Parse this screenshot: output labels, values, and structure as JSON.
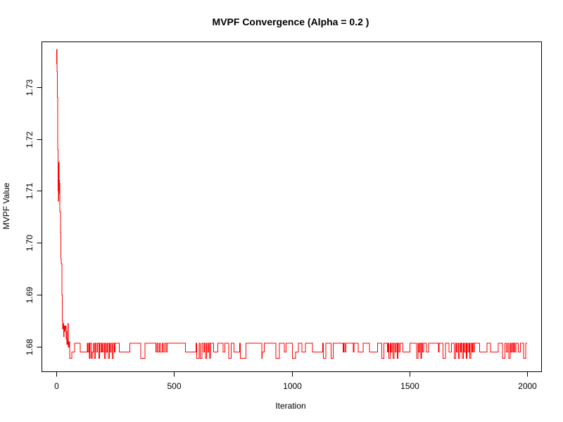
{
  "chart_data": {
    "type": "line",
    "title": "MVPF Convergence (Alpha = 0.2 )",
    "xlabel": "Iteration",
    "ylabel": "MVPF Value",
    "xlim": [
      -60,
      2060
    ],
    "ylim": [
      1.6753,
      1.7386
    ],
    "x_ticks": [
      0,
      500,
      1000,
      1500,
      2000
    ],
    "x_tick_labels": [
      "0",
      "500",
      "1000",
      "1500",
      "2000"
    ],
    "y_ticks": [
      1.68,
      1.69,
      1.7,
      1.71,
      1.72,
      1.73
    ],
    "y_tick_labels": [
      "1.68",
      "1.69",
      "1.70",
      "1.71",
      "1.72",
      "1.73"
    ],
    "grid": false,
    "legend": "none",
    "series": [
      {
        "color": "#ff0000",
        "steps": [
          [
            0,
            1.7345
          ],
          [
            1,
            1.7372
          ],
          [
            3,
            1.733
          ],
          [
            5,
            1.728
          ],
          [
            6,
            1.718
          ],
          [
            7,
            1.715
          ],
          [
            8,
            1.71
          ],
          [
            9,
            1.708
          ],
          [
            10,
            1.711
          ],
          [
            11,
            1.7155
          ],
          [
            12,
            1.712
          ],
          [
            13,
            1.7095
          ],
          [
            14,
            1.7115
          ],
          [
            15,
            1.706
          ],
          [
            17,
            1.702
          ],
          [
            19,
            1.697
          ],
          [
            21,
            1.696
          ],
          [
            23,
            1.69
          ],
          [
            25,
            1.685
          ],
          [
            27,
            1.6835
          ],
          [
            29,
            1.6845
          ],
          [
            31,
            1.682
          ],
          [
            33,
            1.684
          ],
          [
            35,
            1.683
          ],
          [
            37,
            1.6835
          ],
          [
            39,
            1.684
          ],
          [
            41,
            1.6815
          ],
          [
            43,
            1.683
          ],
          [
            45,
            1.6805
          ],
          [
            47,
            1.6815
          ],
          [
            49,
            1.6845
          ],
          [
            51,
            1.68
          ],
          [
            53,
            1.681
          ],
          [
            57,
            1.6778
          ],
          [
            62,
            1.6778
          ],
          [
            66,
            1.679
          ],
          [
            72,
            1.679
          ],
          [
            78,
            1.6807
          ],
          [
            98,
            1.6807
          ],
          [
            102,
            1.679
          ],
          [
            128,
            1.679
          ],
          [
            131,
            1.6807
          ],
          [
            133,
            1.679
          ],
          [
            138,
            1.6807
          ],
          [
            140,
            1.6778
          ],
          [
            143,
            1.6807
          ],
          [
            150,
            1.6778
          ],
          [
            153,
            1.679
          ],
          [
            158,
            1.6807
          ],
          [
            162,
            1.6778
          ],
          [
            165,
            1.6807
          ],
          [
            170,
            1.679
          ],
          [
            175,
            1.6807
          ],
          [
            180,
            1.6778
          ],
          [
            184,
            1.6807
          ],
          [
            188,
            1.679
          ],
          [
            192,
            1.6807
          ],
          [
            196,
            1.679
          ],
          [
            200,
            1.6807
          ],
          [
            205,
            1.6778
          ],
          [
            209,
            1.6807
          ],
          [
            212,
            1.679
          ],
          [
            217,
            1.6807
          ],
          [
            221,
            1.6778
          ],
          [
            225,
            1.6807
          ],
          [
            229,
            1.679
          ],
          [
            233,
            1.6807
          ],
          [
            238,
            1.6778
          ],
          [
            242,
            1.6807
          ],
          [
            246,
            1.679
          ],
          [
            250,
            1.6807
          ],
          [
            268,
            1.679
          ],
          [
            308,
            1.679
          ],
          [
            312,
            1.6807
          ],
          [
            355,
            1.6807
          ],
          [
            358,
            1.6778
          ],
          [
            373,
            1.6778
          ],
          [
            376,
            1.6807
          ],
          [
            420,
            1.6807
          ],
          [
            423,
            1.679
          ],
          [
            428,
            1.6807
          ],
          [
            432,
            1.679
          ],
          [
            438,
            1.6807
          ],
          [
            443,
            1.679
          ],
          [
            450,
            1.6807
          ],
          [
            455,
            1.679
          ],
          [
            460,
            1.6807
          ],
          [
            466,
            1.679
          ],
          [
            470,
            1.6807
          ],
          [
            545,
            1.6807
          ],
          [
            548,
            1.679
          ],
          [
            590,
            1.679
          ],
          [
            594,
            1.6807
          ],
          [
            596,
            1.6778
          ],
          [
            604,
            1.6778
          ],
          [
            607,
            1.6807
          ],
          [
            612,
            1.6778
          ],
          [
            618,
            1.6807
          ],
          [
            625,
            1.679
          ],
          [
            629,
            1.6807
          ],
          [
            633,
            1.6778
          ],
          [
            638,
            1.6807
          ],
          [
            642,
            1.679
          ],
          [
            647,
            1.6807
          ],
          [
            651,
            1.6778
          ],
          [
            655,
            1.6807
          ],
          [
            665,
            1.6807
          ],
          [
            668,
            1.679
          ],
          [
            683,
            1.679
          ],
          [
            686,
            1.6807
          ],
          [
            705,
            1.6807
          ],
          [
            708,
            1.679
          ],
          [
            713,
            1.679
          ],
          [
            716,
            1.6807
          ],
          [
            730,
            1.6807
          ],
          [
            733,
            1.6778
          ],
          [
            740,
            1.6778
          ],
          [
            743,
            1.6807
          ],
          [
            752,
            1.6807
          ],
          [
            755,
            1.679
          ],
          [
            776,
            1.679
          ],
          [
            779,
            1.6807
          ],
          [
            782,
            1.6778
          ],
          [
            802,
            1.6778
          ],
          [
            806,
            1.6807
          ],
          [
            870,
            1.6807
          ],
          [
            873,
            1.6778
          ],
          [
            875,
            1.679
          ],
          [
            880,
            1.679
          ],
          [
            883,
            1.6807
          ],
          [
            930,
            1.6807
          ],
          [
            933,
            1.6778
          ],
          [
            945,
            1.6778
          ],
          [
            948,
            1.6807
          ],
          [
            965,
            1.6807
          ],
          [
            968,
            1.679
          ],
          [
            973,
            1.679
          ],
          [
            976,
            1.6807
          ],
          [
            1000,
            1.6807
          ],
          [
            1003,
            1.6778
          ],
          [
            1013,
            1.6778
          ],
          [
            1016,
            1.679
          ],
          [
            1026,
            1.679
          ],
          [
            1029,
            1.6807
          ],
          [
            1040,
            1.6807
          ],
          [
            1043,
            1.679
          ],
          [
            1056,
            1.679
          ],
          [
            1059,
            1.6807
          ],
          [
            1085,
            1.6807
          ],
          [
            1088,
            1.679
          ],
          [
            1128,
            1.679
          ],
          [
            1131,
            1.6807
          ],
          [
            1135,
            1.6778
          ],
          [
            1142,
            1.6778
          ],
          [
            1145,
            1.6807
          ],
          [
            1165,
            1.6807
          ],
          [
            1168,
            1.6778
          ],
          [
            1173,
            1.6778
          ],
          [
            1176,
            1.6807
          ],
          [
            1215,
            1.6807
          ],
          [
            1218,
            1.679
          ],
          [
            1222,
            1.6807
          ],
          [
            1226,
            1.679
          ],
          [
            1230,
            1.6807
          ],
          [
            1258,
            1.6807
          ],
          [
            1261,
            1.679
          ],
          [
            1265,
            1.6807
          ],
          [
            1280,
            1.6807
          ],
          [
            1283,
            1.679
          ],
          [
            1300,
            1.679
          ],
          [
            1303,
            1.6807
          ],
          [
            1328,
            1.6807
          ],
          [
            1331,
            1.679
          ],
          [
            1362,
            1.679
          ],
          [
            1365,
            1.6807
          ],
          [
            1379,
            1.6807
          ],
          [
            1382,
            1.6778
          ],
          [
            1389,
            1.6778
          ],
          [
            1392,
            1.6807
          ],
          [
            1403,
            1.6807
          ],
          [
            1406,
            1.679
          ],
          [
            1409,
            1.6807
          ],
          [
            1413,
            1.6778
          ],
          [
            1418,
            1.6807
          ],
          [
            1422,
            1.679
          ],
          [
            1426,
            1.6807
          ],
          [
            1430,
            1.6778
          ],
          [
            1435,
            1.6807
          ],
          [
            1440,
            1.679
          ],
          [
            1444,
            1.6807
          ],
          [
            1448,
            1.6778
          ],
          [
            1452,
            1.6807
          ],
          [
            1456,
            1.679
          ],
          [
            1460,
            1.6807
          ],
          [
            1470,
            1.6807
          ],
          [
            1473,
            1.679
          ],
          [
            1500,
            1.679
          ],
          [
            1503,
            1.6807
          ],
          [
            1528,
            1.6807
          ],
          [
            1531,
            1.6778
          ],
          [
            1536,
            1.6807
          ],
          [
            1540,
            1.679
          ],
          [
            1544,
            1.6807
          ],
          [
            1548,
            1.6778
          ],
          [
            1552,
            1.6807
          ],
          [
            1556,
            1.679
          ],
          [
            1560,
            1.6807
          ],
          [
            1570,
            1.6807
          ],
          [
            1573,
            1.679
          ],
          [
            1578,
            1.679
          ],
          [
            1581,
            1.6807
          ],
          [
            1620,
            1.6807
          ],
          [
            1623,
            1.679
          ],
          [
            1627,
            1.6807
          ],
          [
            1640,
            1.6807
          ],
          [
            1643,
            1.6778
          ],
          [
            1650,
            1.6778
          ],
          [
            1653,
            1.6807
          ],
          [
            1665,
            1.6807
          ],
          [
            1668,
            1.679
          ],
          [
            1676,
            1.679
          ],
          [
            1679,
            1.6807
          ],
          [
            1688,
            1.6807
          ],
          [
            1691,
            1.6778
          ],
          [
            1696,
            1.6807
          ],
          [
            1700,
            1.679
          ],
          [
            1704,
            1.6807
          ],
          [
            1708,
            1.6778
          ],
          [
            1713,
            1.6807
          ],
          [
            1717,
            1.679
          ],
          [
            1721,
            1.6807
          ],
          [
            1725,
            1.6778
          ],
          [
            1729,
            1.6807
          ],
          [
            1733,
            1.679
          ],
          [
            1737,
            1.6807
          ],
          [
            1741,
            1.6778
          ],
          [
            1745,
            1.6807
          ],
          [
            1749,
            1.679
          ],
          [
            1753,
            1.6807
          ],
          [
            1757,
            1.6778
          ],
          [
            1761,
            1.6807
          ],
          [
            1765,
            1.679
          ],
          [
            1769,
            1.6807
          ],
          [
            1773,
            1.679
          ],
          [
            1776,
            1.6807
          ],
          [
            1796,
            1.6807
          ],
          [
            1799,
            1.679
          ],
          [
            1826,
            1.679
          ],
          [
            1829,
            1.6807
          ],
          [
            1841,
            1.6807
          ],
          [
            1844,
            1.679
          ],
          [
            1875,
            1.679
          ],
          [
            1878,
            1.6807
          ],
          [
            1893,
            1.6807
          ],
          [
            1896,
            1.6778
          ],
          [
            1903,
            1.6778
          ],
          [
            1906,
            1.6807
          ],
          [
            1912,
            1.679
          ],
          [
            1918,
            1.6807
          ],
          [
            1923,
            1.6778
          ],
          [
            1928,
            1.6807
          ],
          [
            1932,
            1.679
          ],
          [
            1936,
            1.6807
          ],
          [
            1940,
            1.679
          ],
          [
            1944,
            1.6807
          ],
          [
            1948,
            1.679
          ],
          [
            1952,
            1.6807
          ],
          [
            1960,
            1.6807
          ],
          [
            1963,
            1.679
          ],
          [
            1969,
            1.679
          ],
          [
            1972,
            1.6807
          ],
          [
            1982,
            1.6807
          ],
          [
            1985,
            1.6778
          ],
          [
            1991,
            1.6778
          ],
          [
            1994,
            1.6807
          ],
          [
            2000,
            1.6807
          ]
        ]
      }
    ]
  }
}
